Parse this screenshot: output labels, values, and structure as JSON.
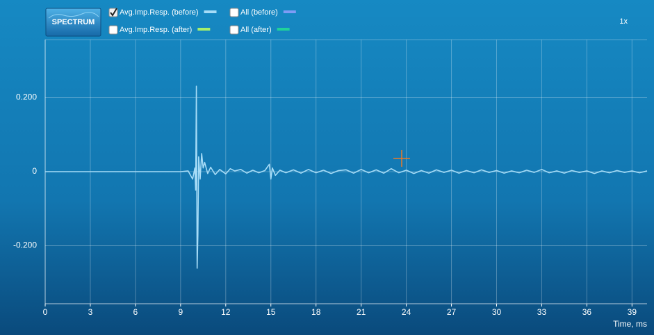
{
  "controls": {
    "button": "SPECTRUM",
    "zoom": "1x",
    "checkboxes": [
      {
        "label": "All (before)",
        "color": "#7f9cf5",
        "checked": false
      },
      {
        "label": "Avg.Imp.Resp. (after)",
        "color": "#a6f06b",
        "checked": false
      },
      {
        "label": "All (after)",
        "color": "#1fd39a",
        "checked": false
      }
    ]
  },
  "chart_data": {
    "type": "line",
    "x_label": "Time, ms",
    "x": [
      0,
      9.0,
      9.5,
      9.8,
      9.95,
      10.0,
      10.05,
      10.1,
      10.15,
      10.2,
      10.3,
      10.4,
      10.5,
      10.6,
      10.8,
      11.0,
      11.3,
      11.6,
      12.0,
      12.3,
      12.6,
      13.0,
      13.4,
      13.8,
      14.2,
      14.6,
      14.9,
      15.0,
      15.1,
      15.3,
      15.6,
      16.0,
      16.5,
      17.0,
      17.5,
      18.0,
      18.5,
      19.0,
      19.5,
      20.0,
      20.5,
      21.0,
      21.5,
      22.0,
      22.5,
      23.0,
      23.5,
      24.0,
      24.5,
      25.0,
      25.5,
      26.0,
      26.5,
      27.0,
      27.5,
      28.0,
      28.5,
      29.0,
      29.5,
      30.0,
      30.5,
      31.0,
      31.5,
      32.0,
      32.5,
      33.0,
      33.5,
      34.0,
      34.5,
      35.0,
      35.5,
      36.0,
      36.5,
      37.0,
      37.5,
      38.0,
      38.5,
      39.0,
      39.5,
      40.0
    ],
    "series": [
      {
        "name": "Avg.Imp.Resp. (before)",
        "color": "#a6dcf7",
        "checked": true,
        "values": [
          0,
          0,
          0.002,
          -0.02,
          0.01,
          -0.05,
          0.231,
          -0.261,
          -0.17,
          0.04,
          -0.02,
          0.049,
          0.01,
          0.025,
          -0.005,
          0.012,
          -0.008,
          0.006,
          -0.006,
          0.008,
          0.002,
          0.006,
          -0.004,
          0.004,
          -0.003,
          0.003,
          0.02,
          -0.02,
          0.01,
          -0.01,
          0.004,
          -0.003,
          0.005,
          -0.004,
          0.006,
          -0.003,
          0.004,
          -0.005,
          0.003,
          0.005,
          -0.004,
          0.006,
          -0.003,
          0.005,
          -0.004,
          0.008,
          -0.003,
          0.004,
          -0.005,
          0.003,
          -0.004,
          0.005,
          -0.002,
          0.004,
          -0.004,
          0.003,
          -0.003,
          0.005,
          -0.002,
          0.003,
          -0.004,
          0.002,
          -0.003,
          0.004,
          -0.002,
          0.006,
          -0.003,
          0.002,
          -0.004,
          0.003,
          -0.002,
          0.002,
          -0.005,
          0.002,
          -0.003,
          0.003,
          -0.002,
          0.002,
          -0.003,
          0.002
        ]
      }
    ],
    "xlim": [
      0,
      40
    ],
    "ylim": [
      -0.357,
      0.357
    ],
    "xticks": [
      0,
      3,
      6,
      9,
      12,
      15,
      18,
      21,
      24,
      27,
      30,
      33,
      36,
      39
    ],
    "yticks": [
      {
        "value": -0.2,
        "label": "-0.200"
      },
      0,
      {
        "value": 0.2,
        "label": "0.200"
      }
    ],
    "grid": true
  }
}
